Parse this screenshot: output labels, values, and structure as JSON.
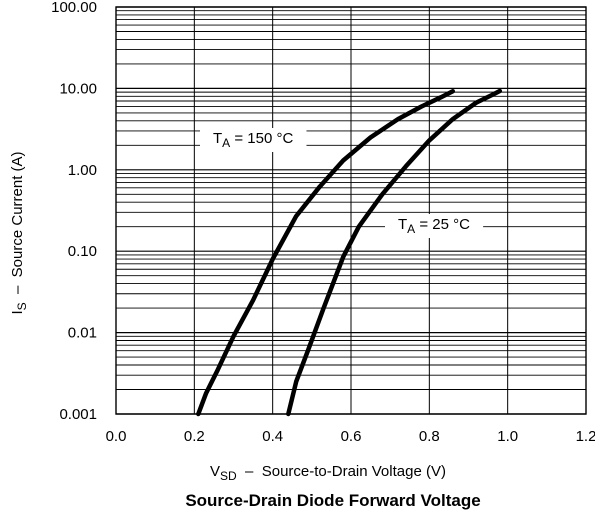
{
  "chart_data": {
    "type": "line",
    "title": "Source-Drain Diode Forward Voltage",
    "xlabel": {
      "main": "V",
      "sub": "SD",
      "rest": "  –  Source-to-Drain Voltage (V)"
    },
    "ylabel": {
      "main": "I",
      "sub": "S",
      "rest": "  –  Source Current (A)"
    },
    "xlim": [
      0.0,
      1.2
    ],
    "ylim": [
      0.001,
      100
    ],
    "yscale": "log",
    "grid": true,
    "x_ticks": [
      "0.0",
      "0.2",
      "0.4",
      "0.6",
      "0.8",
      "1.0",
      "1.2"
    ],
    "x_tick_values": [
      0.0,
      0.2,
      0.4,
      0.6,
      0.8,
      1.0,
      1.2
    ],
    "y_ticks": [
      "100.00",
      "10.00",
      "1.00",
      "0.10",
      "0.01",
      "0.001"
    ],
    "y_tick_values": [
      100,
      10,
      1,
      0.1,
      0.01,
      0.001
    ],
    "series": [
      {
        "name": "T_A = 150 °C",
        "label": {
          "main": "T",
          "sub": "A",
          "rest": " = 150 °C"
        },
        "x": [
          0.21,
          0.23,
          0.26,
          0.3,
          0.35,
          0.4,
          0.46,
          0.52,
          0.58,
          0.65,
          0.72,
          0.78,
          0.83,
          0.86
        ],
        "y": [
          0.001,
          0.0018,
          0.0035,
          0.009,
          0.025,
          0.08,
          0.27,
          0.62,
          1.3,
          2.5,
          4.2,
          6.0,
          7.8,
          9.2
        ]
      },
      {
        "name": "T_A = 25 °C",
        "label": {
          "main": "T",
          "sub": "A",
          "rest": " = 25 °C"
        },
        "x": [
          0.44,
          0.46,
          0.49,
          0.53,
          0.58,
          0.62,
          0.68,
          0.74,
          0.8,
          0.86,
          0.92,
          0.96,
          0.98
        ],
        "y": [
          0.001,
          0.0025,
          0.006,
          0.02,
          0.085,
          0.2,
          0.5,
          1.1,
          2.3,
          4.2,
          6.7,
          8.3,
          9.3
        ]
      }
    ]
  }
}
